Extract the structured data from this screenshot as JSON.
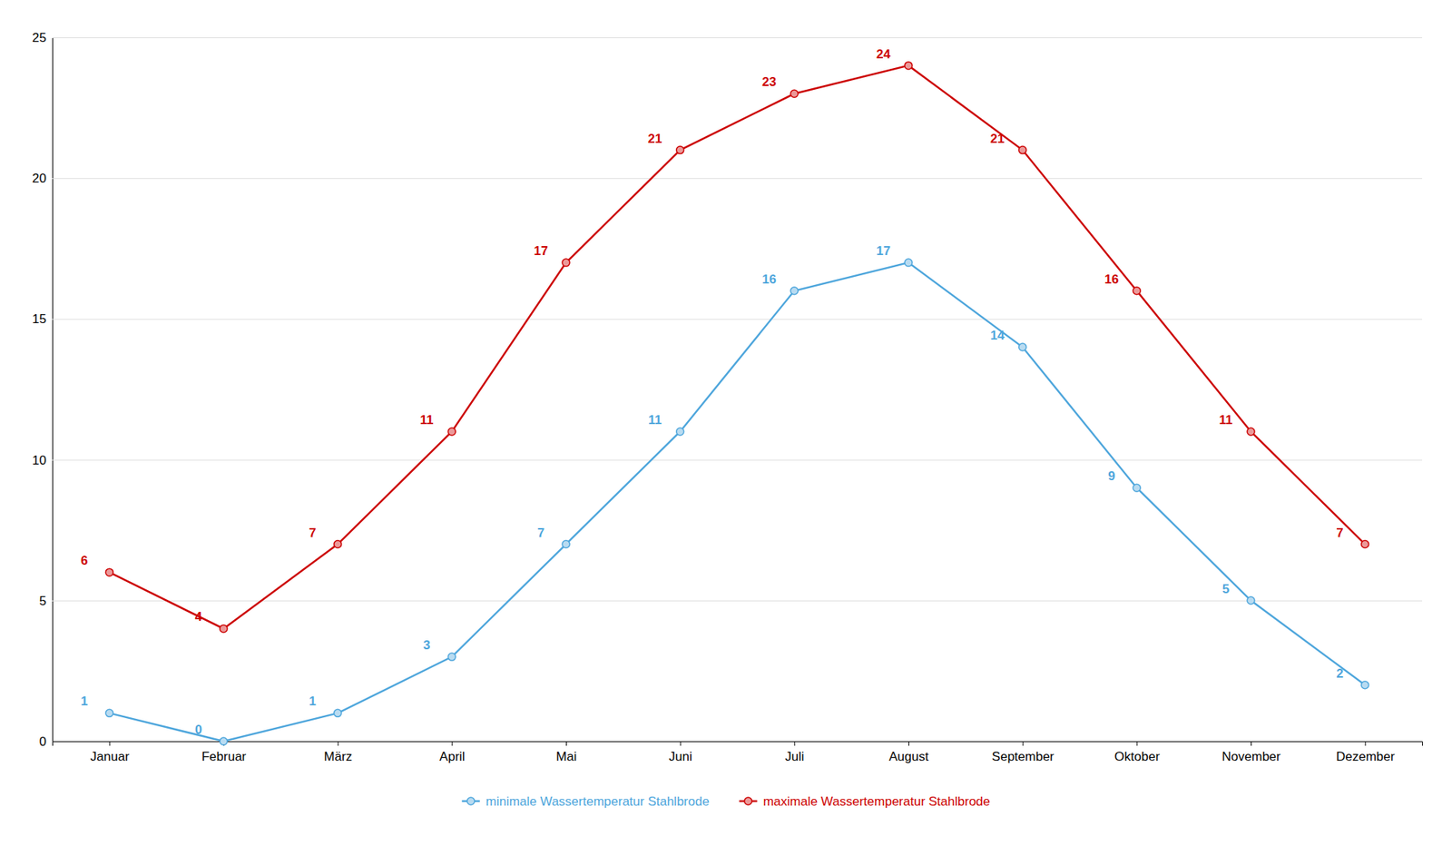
{
  "chart_data": {
    "type": "line",
    "categories": [
      "Januar",
      "Februar",
      "März",
      "April",
      "Mai",
      "Juni",
      "Juli",
      "August",
      "September",
      "Oktober",
      "November",
      "Dezember"
    ],
    "series": [
      {
        "name": "minimale Wassertemperatur Stahlbrode",
        "color": "#4EA6DC",
        "marker": "circle",
        "values": [
          1,
          0,
          1,
          3,
          7,
          11,
          16,
          17,
          14,
          9,
          5,
          2
        ]
      },
      {
        "name": "maximale Wassertemperatur Stahlbrode",
        "color": "#CC0000",
        "marker": "circle",
        "values": [
          6,
          4,
          7,
          11,
          17,
          21,
          23,
          24,
          21,
          16,
          11,
          7
        ]
      }
    ],
    "ylim": [
      0,
      25
    ],
    "yticks": [
      0,
      5,
      10,
      15,
      20,
      25
    ],
    "grid": true,
    "data_labels": true,
    "legend": "bottom"
  }
}
